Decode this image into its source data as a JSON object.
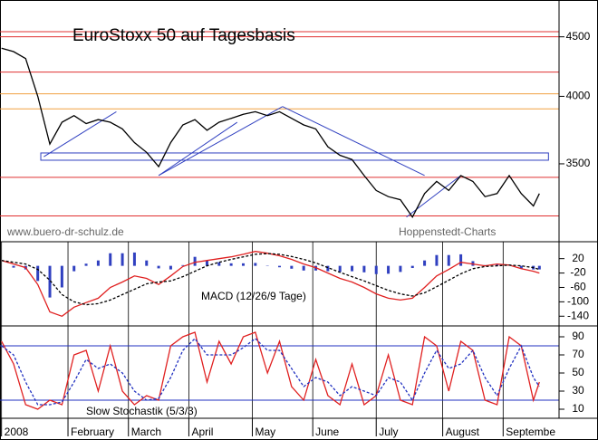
{
  "chart_data": {
    "type": "line",
    "x": [
      0,
      4,
      8,
      12,
      16,
      20,
      24,
      28,
      32,
      36,
      40,
      44,
      48,
      52,
      56,
      60,
      64,
      68,
      72,
      76,
      80,
      84,
      88,
      92,
      96,
      100,
      104,
      108,
      112,
      116,
      120,
      124,
      128,
      132,
      136,
      140,
      144,
      148,
      152,
      156,
      160,
      164,
      168,
      172,
      176,
      178
    ],
    "xlim": [
      -0.5,
      184.5
    ],
    "xticks": [
      {
        "value": 0,
        "label": "2008"
      },
      {
        "value": 22,
        "label": "February"
      },
      {
        "value": 42,
        "label": "March"
      },
      {
        "value": 62,
        "label": "April"
      },
      {
        "value": 83,
        "label": "May"
      },
      {
        "value": 103,
        "label": "June"
      },
      {
        "value": 124,
        "label": "July"
      },
      {
        "value": 146,
        "label": "August"
      },
      {
        "value": 166,
        "label": "Septembe"
      }
    ],
    "panels": [
      {
        "type": "line",
        "title": "EuroStoxx 50 auf Tagesbasis",
        "log": true,
        "ylim": [
          3000,
          4840
        ],
        "yticks": [
          3500,
          4000,
          4500
        ],
        "annotations": [
          "www.buero-dr-schulz.de",
          "Hoppenstedt-Charts"
        ],
        "hlines": [
          {
            "value": 4546,
            "color": "#e03030"
          },
          {
            "value": 4500,
            "color": "#e03030"
          },
          {
            "value": 4197,
            "color": "#e03030"
          },
          {
            "value": 4020,
            "color": "#f0a040"
          },
          {
            "value": 3902,
            "color": "#f0a040"
          },
          {
            "value": 3408,
            "color": "#e03030"
          },
          {
            "value": 3157,
            "color": "#e03030"
          }
        ],
        "band": {
          "x": [
            13,
            181
          ],
          "y": [
            3525,
            3576
          ],
          "color": "#3040c0"
        },
        "trendlines": [
          {
            "x": [
              14,
              38
            ],
            "y": [
              3550,
              3880
            ],
            "color": "#3040c0"
          },
          {
            "x": [
              52,
              93
            ],
            "y": [
              3420,
              3920
            ],
            "color": "#3040c0"
          },
          {
            "x": [
              52,
              78
            ],
            "y": [
              3420,
              3800
            ],
            "color": "#3040c0"
          },
          {
            "x": [
              93,
              140
            ],
            "y": [
              3920,
              3420
            ],
            "color": "#3040c0"
          },
          {
            "x": [
              134,
              152
            ],
            "y": [
              3150,
              3420
            ],
            "color": "#3040c0"
          }
        ],
        "series": [
          {
            "color": "#000000",
            "dash": false,
            "values": [
              4400,
              4370,
              4310,
              4000,
              3640,
              3800,
              3850,
              3790,
              3820,
              3800,
              3750,
              3650,
              3580,
              3480,
              3650,
              3780,
              3820,
              3740,
              3800,
              3830,
              3860,
              3880,
              3850,
              3880,
              3830,
              3780,
              3750,
              3620,
              3560,
              3530,
              3420,
              3320,
              3280,
              3260,
              3150,
              3300,
              3380,
              3320,
              3420,
              3380,
              3280,
              3300,
              3420,
              3300,
              3220,
              3300
            ]
          }
        ]
      },
      {
        "type": "line",
        "label": "MACD (12/26/9 Tage)",
        "log": false,
        "ylim": [
          -167,
          67
        ],
        "yticks": [
          20,
          -20,
          -60,
          -100,
          -140
        ],
        "histogram": {
          "color": "#3040c0",
          "values": [
            0,
            -5,
            -10,
            -42,
            -88,
            -60,
            -15,
            6,
            15,
            35,
            35,
            37,
            15,
            -7,
            -10,
            2,
            25,
            15,
            10,
            7,
            7,
            8,
            1,
            -4,
            -8,
            -13,
            -13,
            -15,
            -17,
            -15,
            -18,
            -23,
            -22,
            -17,
            -6,
            15,
            30,
            30,
            32,
            13,
            2,
            5,
            0,
            -8,
            -10,
            -10
          ]
        },
        "series": [
          {
            "color": "#e02020",
            "dash": false,
            "values": [
              15,
              5,
              -5,
              -52,
              -128,
              -140,
              -115,
              -102,
              -90,
              -60,
              -45,
              -28,
              -35,
              -52,
              -28,
              -2,
              10,
              15,
              20,
              25,
              32,
              40,
              35,
              28,
              18,
              5,
              -5,
              -20,
              -35,
              -45,
              -60,
              -78,
              -90,
              -95,
              -90,
              -60,
              -28,
              -10,
              10,
              5,
              0,
              5,
              2,
              -8,
              -15,
              -20
            ]
          },
          {
            "color": "#000000",
            "dash": true,
            "values": [
              15,
              10,
              5,
              -10,
              -40,
              -80,
              -100,
              -108,
              -105,
              -95,
              -80,
              -65,
              -50,
              -45,
              -42,
              -30,
              -15,
              0,
              10,
              18,
              25,
              32,
              34,
              32,
              26,
              18,
              8,
              -5,
              -18,
              -30,
              -42,
              -55,
              -68,
              -78,
              -84,
              -75,
              -58,
              -40,
              -22,
              -8,
              -2,
              0,
              2,
              0,
              -5,
              -10
            ]
          }
        ]
      },
      {
        "type": "line",
        "label": "Slow Stochastik (5/3/3)",
        "log": false,
        "ylim": [
          0,
          102
        ],
        "yticks": [
          90,
          70,
          50,
          30,
          10
        ],
        "hlines": [
          {
            "value": 80,
            "color": "#2030c0"
          },
          {
            "value": 20,
            "color": "#2030c0"
          }
        ],
        "series": [
          {
            "color": "#e02020",
            "dash": false,
            "values": [
              85,
              60,
              15,
              10,
              20,
              15,
              70,
              75,
              30,
              80,
              30,
              15,
              25,
              20,
              80,
              90,
              95,
              40,
              85,
              60,
              90,
              95,
              50,
              85,
              35,
              20,
              65,
              25,
              15,
              60,
              15,
              25,
              70,
              20,
              15,
              90,
              80,
              30,
              85,
              75,
              20,
              15,
              90,
              80,
              20,
              40
            ]
          },
          {
            "color": "#2030c0",
            "dash": true,
            "values": [
              80,
              70,
              40,
              15,
              15,
              18,
              40,
              65,
              55,
              60,
              50,
              30,
              20,
              22,
              45,
              75,
              88,
              70,
              70,
              70,
              78,
              88,
              75,
              75,
              55,
              35,
              45,
              40,
              25,
              35,
              30,
              25,
              45,
              40,
              20,
              50,
              75,
              55,
              60,
              75,
              45,
              25,
              55,
              80,
              45,
              35
            ]
          }
        ]
      }
    ]
  }
}
